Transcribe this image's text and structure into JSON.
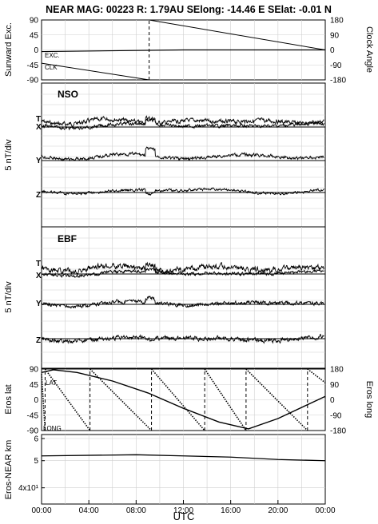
{
  "header": {
    "title": "NEAR MAG: 00223  R: 1.79AU  SElong:  -14.46 E  SElat:   -0.01 N"
  },
  "colors": {
    "trace": "#000000",
    "axis": "#000000",
    "grid": "#cfcfcf"
  },
  "chart_data": [
    {
      "type": "line",
      "panel": "sunward-exc-clock-angle",
      "ylabel": "Sunward Exc.",
      "ylabel_right": "Clock Angle",
      "yticks_left": [
        "90",
        "45",
        "0",
        "-45",
        "-90"
      ],
      "yticks_right": [
        "180",
        "90",
        "0",
        "-90",
        "-180"
      ],
      "ylim": [
        -90,
        90
      ],
      "ylim_right": [
        -180,
        180
      ],
      "grid": true,
      "series_labels": [
        "EXC.",
        "CLK"
      ],
      "series": [
        {
          "name": "EXC.",
          "x_hours": [
            0,
            12,
            24
          ],
          "values": [
            -5,
            0,
            0
          ]
        },
        {
          "name": "CLK",
          "x_hours": [
            0,
            9.1,
            9.1,
            24
          ],
          "values": [
            -80,
            -180,
            180,
            0
          ]
        }
      ]
    },
    {
      "type": "line",
      "panel": "nso",
      "section_label": "NSO",
      "ylabel": "5 nT/div",
      "components": [
        "T",
        "X",
        "Y",
        "Z"
      ],
      "grid": true
    },
    {
      "type": "line",
      "panel": "ebf",
      "section_label": "EBF",
      "ylabel": "5 nT/div",
      "components": [
        "T",
        "X",
        "Y",
        "Z"
      ],
      "grid": true
    },
    {
      "type": "line",
      "panel": "eros-lat-long",
      "ylabel": "Eros lat",
      "ylabel_right": "Eros long",
      "yticks_left": [
        "90",
        "45",
        "0",
        "-45",
        "-90"
      ],
      "yticks_right": [
        "180",
        "90",
        "0",
        "-90",
        "-180"
      ],
      "ylim": [
        -90,
        90
      ],
      "ylim_right": [
        -180,
        180
      ],
      "series_labels": [
        "LAT",
        "LONG"
      ],
      "grid": true,
      "series": [
        {
          "name": "LAT",
          "x_hours": [
            0,
            1,
            3,
            6,
            9,
            12,
            15,
            17.5,
            20,
            24
          ],
          "values": [
            80,
            88,
            80,
            55,
            20,
            -25,
            -65,
            -85,
            -55,
            10
          ]
        },
        {
          "name": "LONG",
          "x_hours": [
            0,
            0.3,
            0.3,
            4.1,
            4.1,
            9.3,
            9.3,
            13.8,
            13.8,
            17.3,
            17.3,
            22.5,
            22.5,
            24
          ],
          "values": [
            150,
            -180,
            180,
            -180,
            180,
            -180,
            180,
            -180,
            180,
            -180,
            180,
            -180,
            180,
            100
          ]
        }
      ]
    },
    {
      "type": "line",
      "panel": "eros-near-distance",
      "ylabel": "Eros-NEAR km",
      "yscale": "log",
      "yticks_left": [
        "6",
        "5",
        "4x10¹"
      ],
      "ylim": [
        35,
        62
      ],
      "grid": true,
      "series": [
        {
          "name": "",
          "x_hours": [
            0,
            8,
            12,
            16,
            20,
            24
          ],
          "values": [
            52,
            52.5,
            52,
            51.5,
            50.5,
            50
          ]
        }
      ]
    }
  ],
  "xaxis": {
    "xlabel": "UTC",
    "xticks": [
      "00:00",
      "04:00",
      "08:00",
      "12:00",
      "16:00",
      "20:00",
      "00:00"
    ],
    "xlim_hours": [
      0,
      24
    ]
  }
}
